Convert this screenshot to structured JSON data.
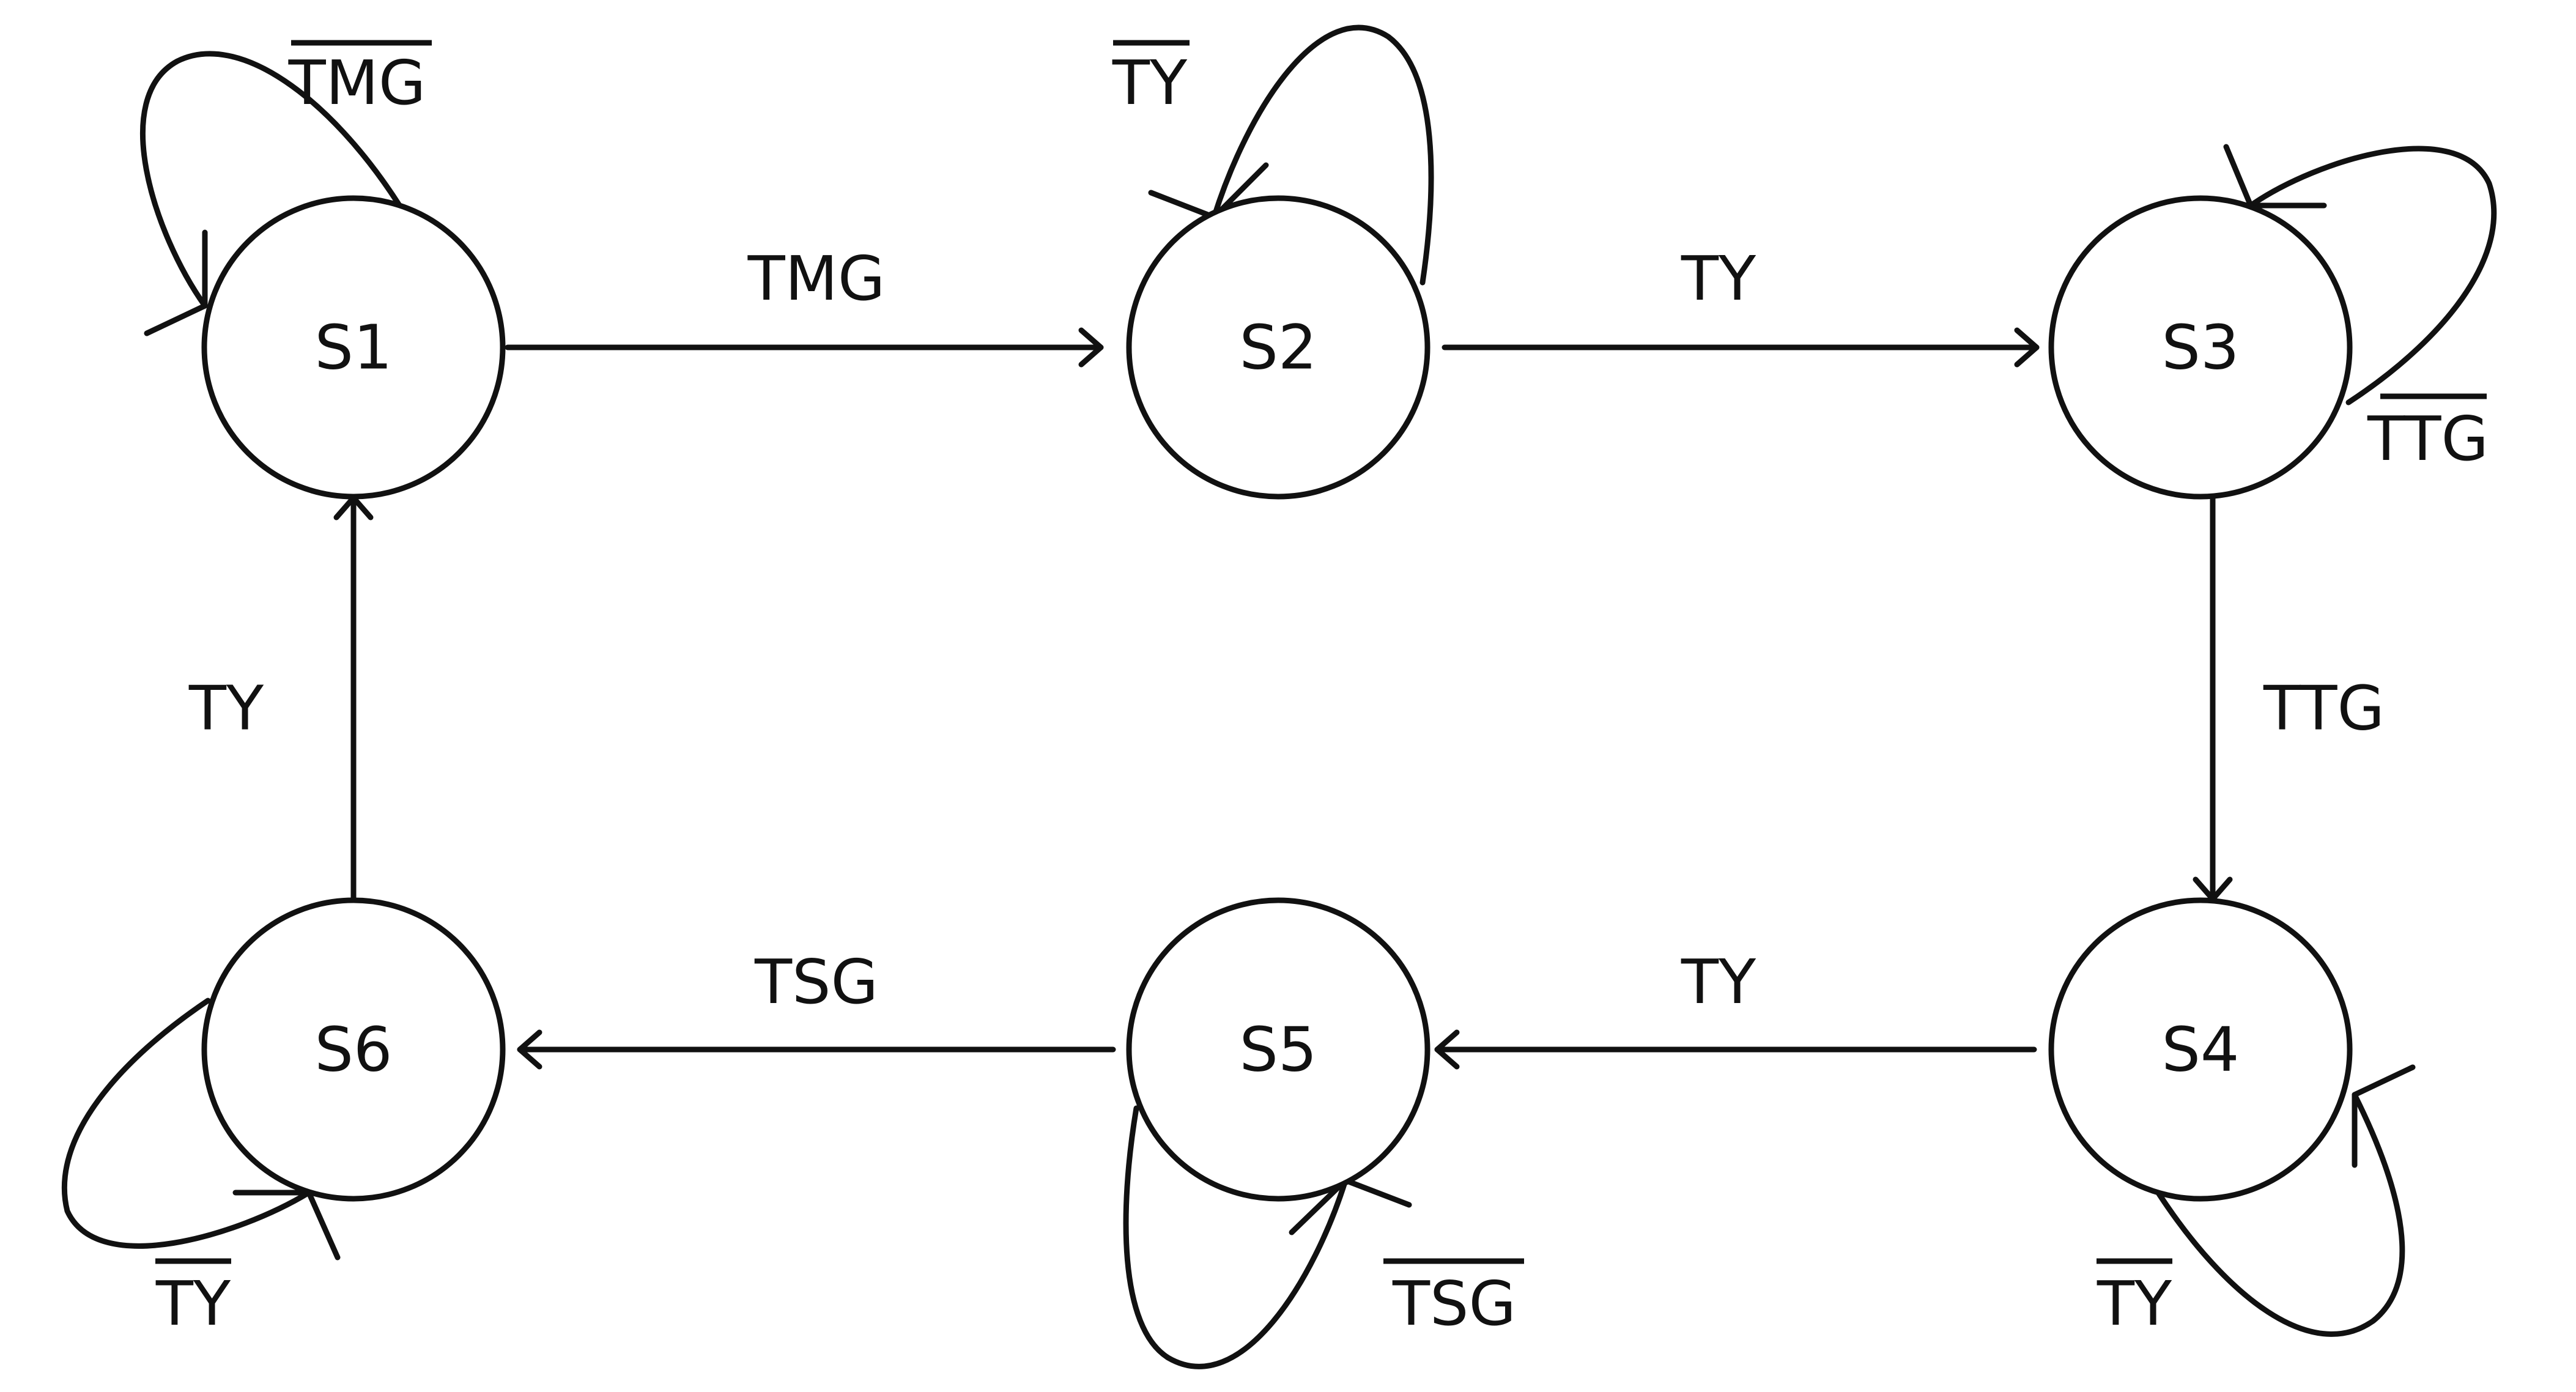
{
  "states": [
    {
      "id": "S1",
      "label": "S1"
    },
    {
      "id": "S2",
      "label": "S2"
    },
    {
      "id": "S3",
      "label": "S3"
    },
    {
      "id": "S4",
      "label": "S4"
    },
    {
      "id": "S5",
      "label": "S5"
    },
    {
      "id": "S6",
      "label": "S6"
    }
  ],
  "transitions": [
    {
      "from": "S1",
      "to": "S2",
      "label": "TMG"
    },
    {
      "from": "S2",
      "to": "S3",
      "label": "TY"
    },
    {
      "from": "S3",
      "to": "S4",
      "label": "TTG"
    },
    {
      "from": "S4",
      "to": "S5",
      "label": "TY"
    },
    {
      "from": "S5",
      "to": "S6",
      "label": "TSG"
    },
    {
      "from": "S6",
      "to": "S1",
      "label": "TY"
    }
  ],
  "self_loops": [
    {
      "state": "S1",
      "label": "TMG",
      "negated": true
    },
    {
      "state": "S2",
      "label": "TY",
      "negated": true
    },
    {
      "state": "S3",
      "label": "TTG",
      "negated": true
    },
    {
      "state": "S4",
      "label": "TY",
      "negated": true
    },
    {
      "state": "S5",
      "label": "TSG",
      "negated": true
    },
    {
      "state": "S6",
      "label": "TY",
      "negated": true
    }
  ]
}
